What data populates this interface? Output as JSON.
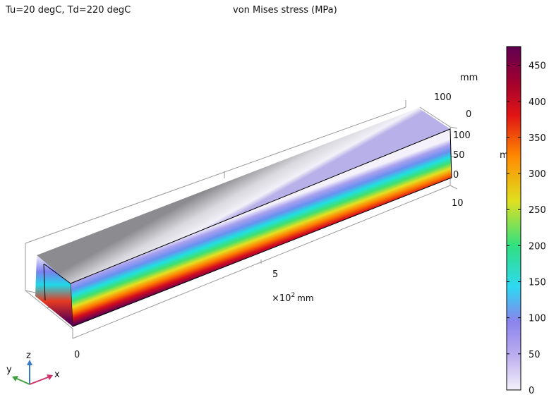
{
  "header": {
    "left_title": "Tu=20 degC, Td=220 degC",
    "plot_title": "von Mises stress (MPa)"
  },
  "axes": {
    "y_unit": "mm",
    "y_ticks": [
      "100",
      "0"
    ],
    "z_ticks": [
      "100",
      "50",
      "0"
    ],
    "z_unit": "m",
    "x_ticks": [
      "10",
      "5",
      "0"
    ],
    "x_scale": {
      "base": "×10",
      "exponent": "2",
      "unit": "mm"
    }
  },
  "colorbar": {
    "range": [
      0,
      476
    ],
    "ticks": [
      0,
      50,
      100,
      150,
      200,
      250,
      300,
      350,
      400,
      450
    ]
  },
  "triad": {
    "z": "z",
    "y": "y",
    "x": "x"
  }
}
